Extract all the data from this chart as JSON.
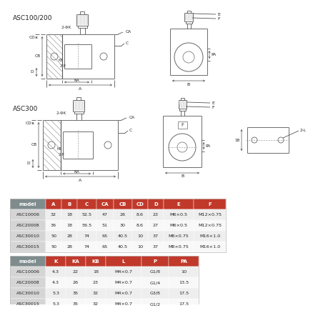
{
  "title_asc100": "ASC100/200",
  "title_asc300": "ASC300",
  "bg_color": "#ffffff",
  "table1_header_bg": "#c0392b",
  "table1_row_bg1": "#e8e8e8",
  "table1_row_bg2": "#f8f8f8",
  "table_header_model_bg": "#7f8c8d",
  "table1_headers": [
    "model",
    "A",
    "B",
    "C",
    "CA",
    "CB",
    "CD",
    "D",
    "E",
    "F"
  ],
  "table1_data": [
    [
      "ASC10006",
      "32",
      "18",
      "52.5",
      "47",
      "26",
      "8.6",
      "23",
      "M6×0.5",
      "M12×0.75"
    ],
    [
      "ASC20008",
      "36",
      "18",
      "56.5",
      "51",
      "30",
      "8.6",
      "27",
      "M6×0.5",
      "M12×0.75"
    ],
    [
      "ASC30010",
      "50",
      "28",
      "74",
      "65",
      "40.5",
      "10",
      "37",
      "M8×0.75",
      "M16×1.0"
    ],
    [
      "ASC30015",
      "50",
      "28",
      "74",
      "65",
      "40.5",
      "10",
      "37",
      "M8×0.75",
      "M16×1.0"
    ]
  ],
  "table2_headers": [
    "model",
    "K",
    "KA",
    "KB",
    "L",
    "P",
    "PA"
  ],
  "table2_data": [
    [
      "ASC10006",
      "4.3",
      "22",
      "18",
      "M4×0.7",
      "G1/8",
      "10"
    ],
    [
      "ASC20008",
      "4.3",
      "26",
      "23",
      "M4×0.7",
      "G1/4",
      "13.5"
    ],
    [
      "ASC30010",
      "5.3",
      "35",
      "32",
      "M4×0.7",
      "G3/8",
      "17.5"
    ],
    [
      "ASC30015",
      "5.3",
      "35",
      "32",
      "M4×0.7",
      "G1/2",
      "17.5"
    ]
  ]
}
